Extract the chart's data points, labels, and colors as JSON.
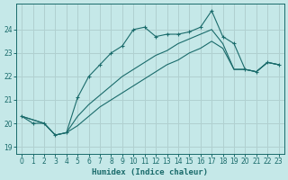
{
  "xlabel": "Humidex (Indice chaleur)",
  "background_color": "#c5e8e8",
  "grid_color": "#b0d0d0",
  "line_color": "#1a6b6b",
  "xlim": [
    -0.5,
    23.5
  ],
  "ylim": [
    18.7,
    25.1
  ],
  "yticks": [
    19,
    20,
    21,
    22,
    23,
    24
  ],
  "xticks": [
    0,
    1,
    2,
    3,
    4,
    5,
    6,
    7,
    8,
    9,
    10,
    11,
    12,
    13,
    14,
    15,
    16,
    17,
    18,
    19,
    20,
    21,
    22,
    23
  ],
  "line1_x": [
    0,
    1,
    2,
    3,
    4,
    5,
    6,
    7,
    8,
    9,
    10,
    11,
    12,
    13,
    14,
    15,
    16,
    17,
    18,
    19,
    20,
    21,
    22,
    23
  ],
  "line1_y": [
    20.3,
    20.0,
    20.0,
    19.5,
    19.6,
    21.1,
    22.0,
    22.5,
    23.0,
    23.3,
    24.0,
    24.1,
    23.7,
    23.8,
    23.8,
    23.9,
    24.1,
    24.8,
    23.7,
    23.4,
    22.3,
    22.2,
    22.6,
    22.5
  ],
  "line2_x": [
    0,
    2,
    3,
    4,
    5,
    6,
    7,
    8,
    9,
    10,
    11,
    12,
    13,
    14,
    15,
    16,
    17,
    18,
    19,
    20,
    21,
    22,
    23
  ],
  "line2_y": [
    20.3,
    20.0,
    19.5,
    19.6,
    20.3,
    20.8,
    21.2,
    21.6,
    22.0,
    22.3,
    22.6,
    22.9,
    23.1,
    23.4,
    23.6,
    23.8,
    24.0,
    23.4,
    22.3,
    22.3,
    22.2,
    22.6,
    22.5
  ],
  "line3_x": [
    0,
    2,
    3,
    4,
    5,
    6,
    7,
    8,
    9,
    10,
    11,
    12,
    13,
    14,
    15,
    16,
    17,
    18,
    19,
    20,
    21,
    22,
    23
  ],
  "line3_y": [
    20.3,
    20.0,
    19.5,
    19.6,
    19.9,
    20.3,
    20.7,
    21.0,
    21.3,
    21.6,
    21.9,
    22.2,
    22.5,
    22.7,
    23.0,
    23.2,
    23.5,
    23.2,
    22.3,
    22.3,
    22.2,
    22.6,
    22.5
  ]
}
